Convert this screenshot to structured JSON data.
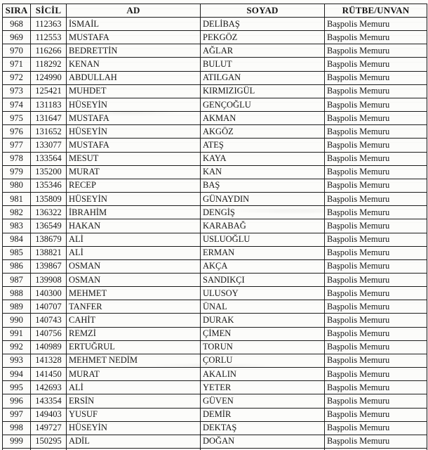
{
  "table": {
    "column_keys": [
      "sira",
      "sicil",
      "ad",
      "soyad",
      "rutbe"
    ],
    "columns": [
      "SIRA",
      "SİCİL",
      "AD",
      "SOYAD",
      "RÜTBE/UNVAN"
    ],
    "rows": [
      [
        "968",
        "112363",
        "İSMAİL",
        "DELİBAŞ",
        "Başpolis Memuru"
      ],
      [
        "969",
        "112553",
        "MUSTAFA",
        "PEKGÖZ",
        "Başpolis Memuru"
      ],
      [
        "970",
        "116266",
        "BEDRETTİN",
        "AĞLAR",
        "Başpolis Memuru"
      ],
      [
        "971",
        "118292",
        "KENAN",
        "BULUT",
        "Başpolis Memuru"
      ],
      [
        "972",
        "124990",
        "ABDULLAH",
        "ATILGAN",
        "Başpolis Memuru"
      ],
      [
        "973",
        "125421",
        "MUHDET",
        "KIRMIZIGÜL",
        "Başpolis Memuru"
      ],
      [
        "974",
        "131183",
        "HÜSEYİN",
        "GENÇOĞLU",
        "Başpolis Memuru"
      ],
      [
        "975",
        "131647",
        "MUSTAFA",
        "AKMAN",
        "Başpolis Memuru"
      ],
      [
        "976",
        "131652",
        "HÜSEYİN",
        "AKGÖZ",
        "Başpolis Memuru"
      ],
      [
        "977",
        "133077",
        "MUSTAFA",
        "ATEŞ",
        "Başpolis Memuru"
      ],
      [
        "978",
        "133564",
        "MESUT",
        "KAYA",
        "Başpolis Memuru"
      ],
      [
        "979",
        "135200",
        "MURAT",
        "KAN",
        "Başpolis Memuru"
      ],
      [
        "980",
        "135346",
        "RECEP",
        "BAŞ",
        "Başpolis Memuru"
      ],
      [
        "981",
        "135809",
        "HÜSEYİN",
        "GÜNAYDIN",
        "Başpolis Memuru"
      ],
      [
        "982",
        "136322",
        "İBRAHİM",
        "DENGİŞ",
        "Başpolis Memuru"
      ],
      [
        "983",
        "136549",
        "HAKAN",
        "KARABAĞ",
        "Başpolis Memuru"
      ],
      [
        "984",
        "138679",
        "ALİ",
        "USLUOĞLU",
        "Başpolis Memuru"
      ],
      [
        "985",
        "138821",
        "ALİ",
        "ERMAN",
        "Başpolis Memuru"
      ],
      [
        "986",
        "139867",
        "OSMAN",
        "AKÇA",
        "Başpolis Memuru"
      ],
      [
        "987",
        "139908",
        "OSMAN",
        "SANDIKÇI",
        "Başpolis Memuru"
      ],
      [
        "988",
        "140300",
        "MEHMET",
        "ULUSOY",
        "Başpolis Memuru"
      ],
      [
        "989",
        "140707",
        "TANFER",
        "ÜNAL",
        "Başpolis Memuru"
      ],
      [
        "990",
        "140743",
        "CAHİT",
        "DURAK",
        "Başpolis Memuru"
      ],
      [
        "991",
        "140756",
        "REMZİ",
        "ÇİMEN",
        "Başpolis Memuru"
      ],
      [
        "992",
        "140989",
        "ERTUĞRUL",
        "TORUN",
        "Başpolis Memuru"
      ],
      [
        "993",
        "141328",
        "MEHMET NEDİM",
        "ÇORLU",
        "Başpolis Memuru"
      ],
      [
        "994",
        "141450",
        "MURAT",
        "AKALIN",
        "Başpolis Memuru"
      ],
      [
        "995",
        "142693",
        "ALİ",
        "YETER",
        "Başpolis Memuru"
      ],
      [
        "996",
        "143354",
        "ERSİN",
        "GÜVEN",
        "Başpolis Memuru"
      ],
      [
        "997",
        "149403",
        "YUSUF",
        "DEMİR",
        "Başpolis Memuru"
      ],
      [
        "998",
        "149727",
        "HÜSEYİN",
        "DEKTAŞ",
        "Başpolis Memuru"
      ],
      [
        "999",
        "150295",
        "ADİL",
        "DOĞAN",
        "Başpolis Memuru"
      ]
    ]
  }
}
